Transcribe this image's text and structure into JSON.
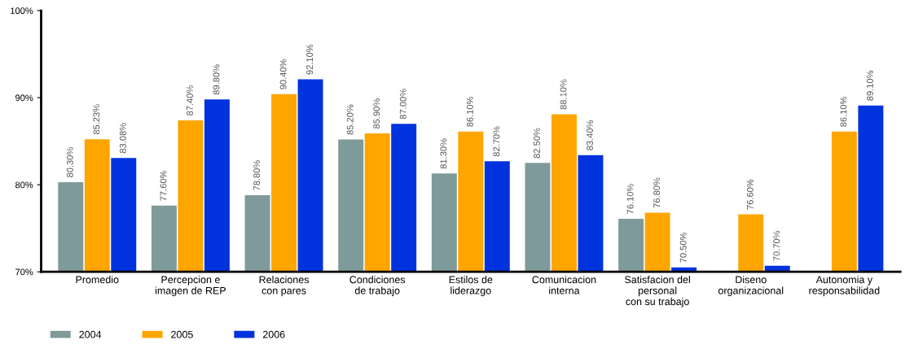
{
  "chart_data": {
    "type": "bar",
    "categories": [
      "Promedio",
      "Percepcion e\nimagen de REP",
      "Relaciones\ncon pares",
      "Condiciones\nde trabajo",
      "Estilos de\nliderazgo",
      "Comunicacion\ninterna",
      "Satisfacion del\npersonal\ncon su trabajo",
      "Diseno\norganizacional",
      "Autonomia y\nresponsabilidad"
    ],
    "series": [
      {
        "name": "2004",
        "color": "#7f9a9a",
        "values": [
          80.3,
          77.6,
          78.8,
          85.2,
          81.3,
          82.5,
          76.1,
          null,
          null
        ],
        "value_labels": [
          "80.30%",
          "77.60%",
          "78.80%",
          "85.20%",
          "81.30%",
          "82.50%",
          "76.10%",
          null,
          null
        ]
      },
      {
        "name": "2005",
        "color": "#ffa500",
        "values": [
          85.23,
          87.4,
          90.4,
          85.9,
          86.1,
          88.1,
          76.8,
          76.6,
          86.1
        ],
        "value_labels": [
          "85.23%",
          "87.40%",
          "90.40%",
          "85.90%",
          "86.10%",
          "88.10%",
          "76.80%",
          "76.60%",
          "86.10%"
        ]
      },
      {
        "name": "2006",
        "color": "#0033dd",
        "values": [
          83.08,
          89.8,
          92.1,
          87.0,
          82.7,
          83.4,
          70.5,
          70.7,
          89.1
        ],
        "value_labels": [
          "83.08%",
          "89.80%",
          "92.10%",
          "87.00%",
          "82.70%",
          "83.40%",
          "70.50%",
          "70.70%",
          "89.10%"
        ]
      }
    ],
    "ylim": [
      70,
      100
    ],
    "yticks": [
      {
        "value": 70,
        "label": "70%"
      },
      {
        "value": 80,
        "label": "80%"
      },
      {
        "value": 90,
        "label": "90%"
      },
      {
        "value": 100,
        "label": "100%"
      }
    ],
    "grid": false,
    "legend": "bottom left"
  }
}
